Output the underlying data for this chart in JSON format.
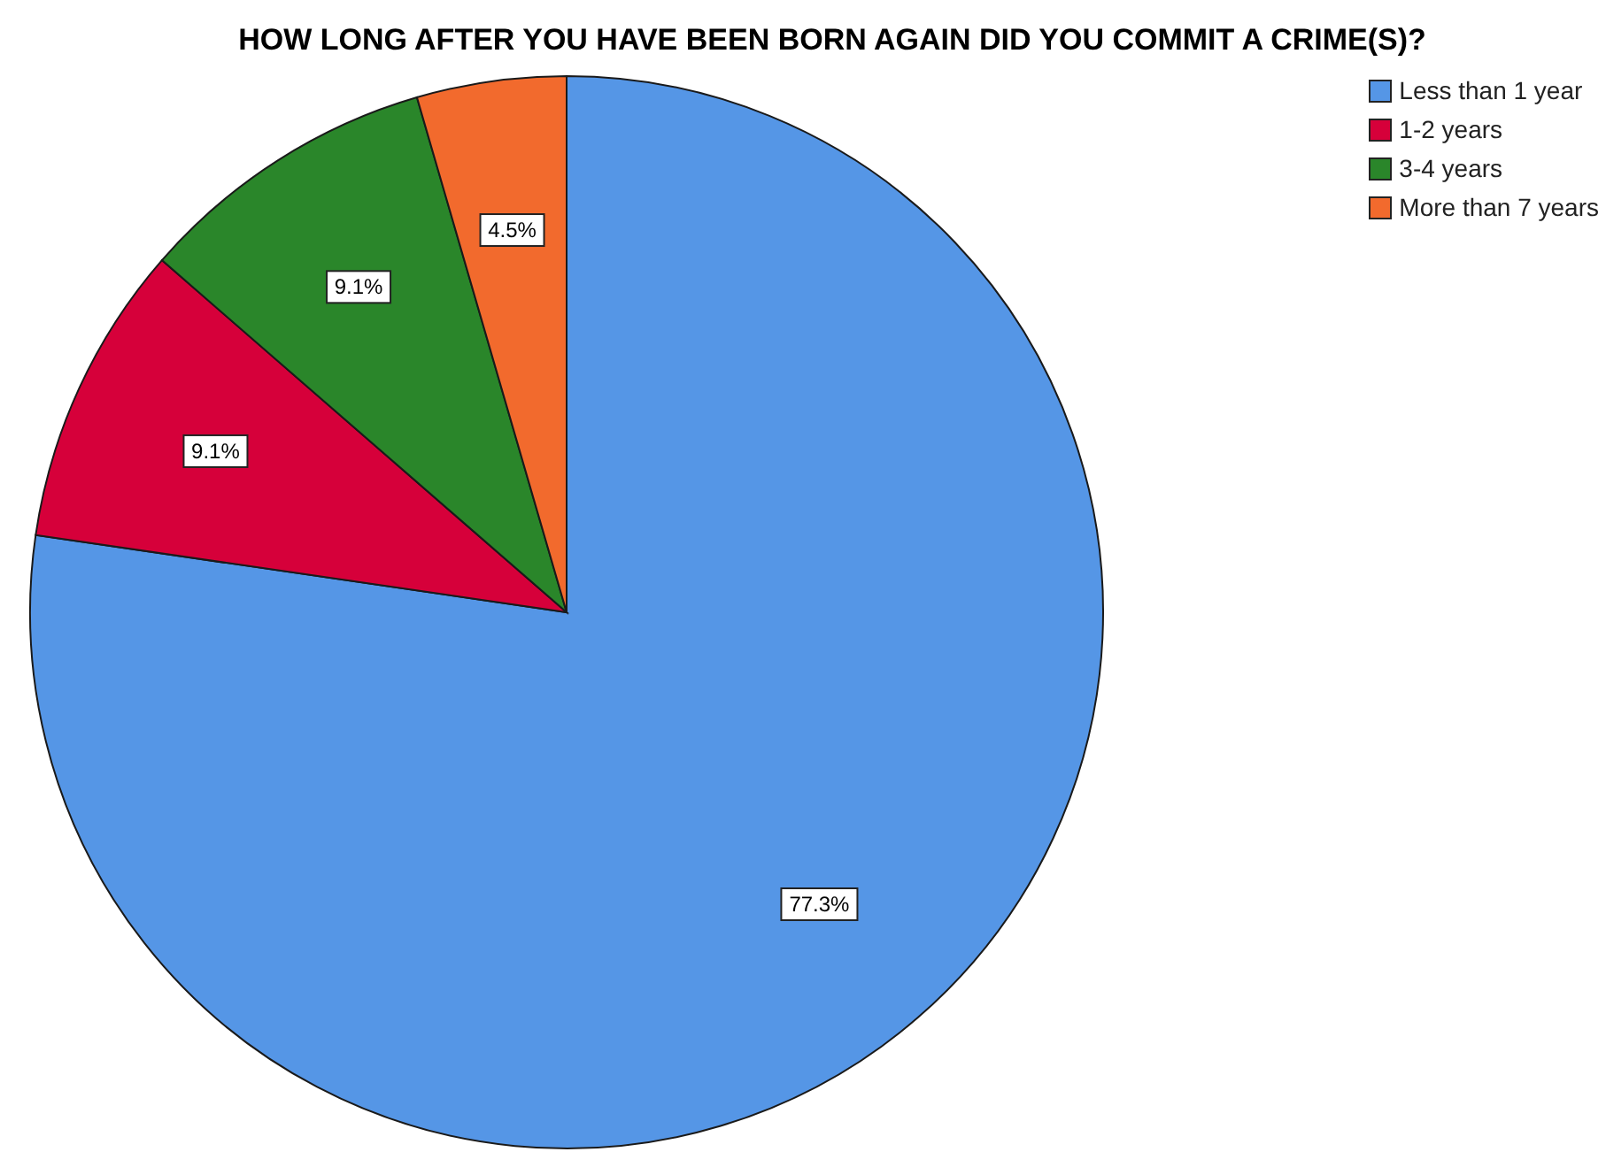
{
  "chart_data": {
    "type": "pie",
    "title": "HOW LONG AFTER YOU HAVE BEEN BORN AGAIN DID YOU COMMIT A CRIME(S)?",
    "categories": [
      "Less than 1 year",
      "1-2 years",
      "3-4 years",
      "More than 7 years"
    ],
    "values": [
      77.3,
      9.1,
      9.1,
      4.5
    ],
    "colors": [
      "#5596e6",
      "#d6003a",
      "#2a862a",
      "#f26a2d"
    ],
    "value_labels": [
      "77.3%",
      "9.1%",
      "9.1%",
      "4.5%"
    ],
    "legend": "top right"
  }
}
